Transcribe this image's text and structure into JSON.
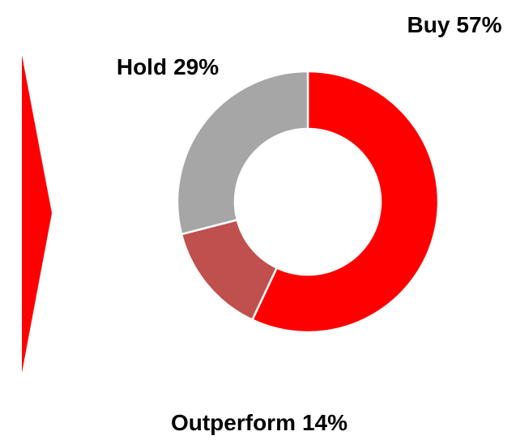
{
  "chart_data": {
    "type": "donut",
    "categories": [
      "Buy",
      "Outperform",
      "Hold"
    ],
    "values": [
      57,
      14,
      29
    ],
    "value_labels": [
      "57%",
      "14%",
      "29%"
    ],
    "colors": [
      "#ff0000",
      "#c0504d",
      "#a6a6a6"
    ]
  }
}
